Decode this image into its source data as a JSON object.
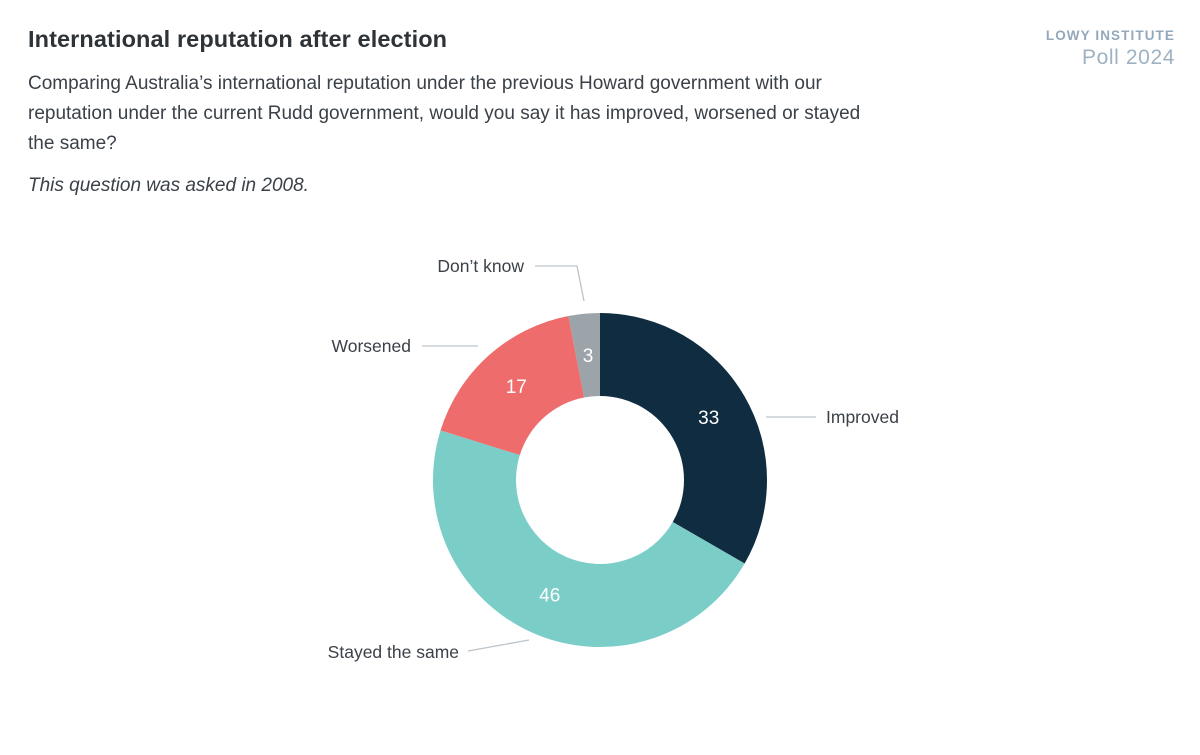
{
  "header": {
    "title": "International reputation after election",
    "question": "Comparing Australia’s international reputation under the previous Howard government with our reputation under the current Rudd government, would you say it has improved, worsened or stayed the same?",
    "note": "This question was asked in 2008."
  },
  "logo": {
    "line1": "LOWY INSTITUTE",
    "line2": "Poll 2024"
  },
  "chart_data": {
    "type": "pie",
    "subtype": "donut",
    "title": "International reputation after election",
    "direction": "clockwise",
    "start_angle_deg": 0,
    "inner_radius_ratio": 0.5,
    "value_label_color": "#ffffff",
    "leader_line_color": "#bcc3c9",
    "slices": [
      {
        "label": "Improved",
        "value": 33,
        "color": "#102c40"
      },
      {
        "label": "Stayed the same",
        "value": 46,
        "color": "#7bcdc8"
      },
      {
        "label": "Worsened",
        "value": 17,
        "color": "#ee6c6c"
      },
      {
        "label": "Don’t know",
        "value": 3,
        "color": "#9ca4a9"
      }
    ]
  }
}
